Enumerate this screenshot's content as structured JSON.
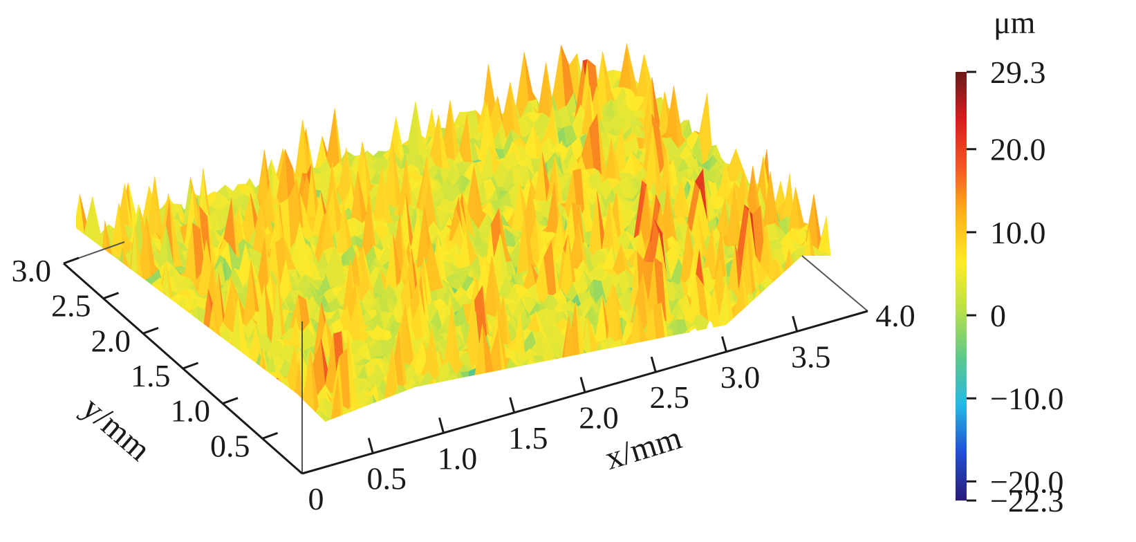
{
  "chart_data": {
    "type": "surface3d",
    "title": "",
    "description_kind": "3D surface topography (random rough surface)",
    "x_axis": {
      "label": "x/mm",
      "range": [
        0,
        4.0
      ],
      "ticks": [
        "0",
        "0.5",
        "1.0",
        "1.5",
        "2.0",
        "2.5",
        "3.0",
        "3.5",
        "4.0"
      ],
      "tick_values": [
        0,
        0.5,
        1.0,
        1.5,
        2.0,
        2.5,
        3.0,
        3.5,
        4.0
      ]
    },
    "y_axis": {
      "label": "y/mm",
      "range": [
        0,
        3.0
      ],
      "ticks": [
        "0.5",
        "1.0",
        "1.5",
        "2.0",
        "2.5",
        "3.0"
      ],
      "tick_values": [
        0.5,
        1.0,
        1.5,
        2.0,
        2.5,
        3.0
      ]
    },
    "z_range": [
      -22.3,
      29.3
    ],
    "colorbar": {
      "unit": "μm",
      "labels": [
        "29.3",
        "20.0",
        "10.0",
        "0",
        "−10.0",
        "−20.0",
        "−22.3"
      ],
      "values": [
        29.3,
        20.0,
        10.0,
        0,
        -10.0,
        -20.0,
        -22.3
      ],
      "colors": [
        "#2a1a7a",
        "#1f4fd0",
        "#27b7e6",
        "#5cc98a",
        "#b8e04a",
        "#ffea2a",
        "#ffb21f",
        "#f25a22",
        "#d41e1e",
        "#6b1a1a"
      ]
    }
  }
}
